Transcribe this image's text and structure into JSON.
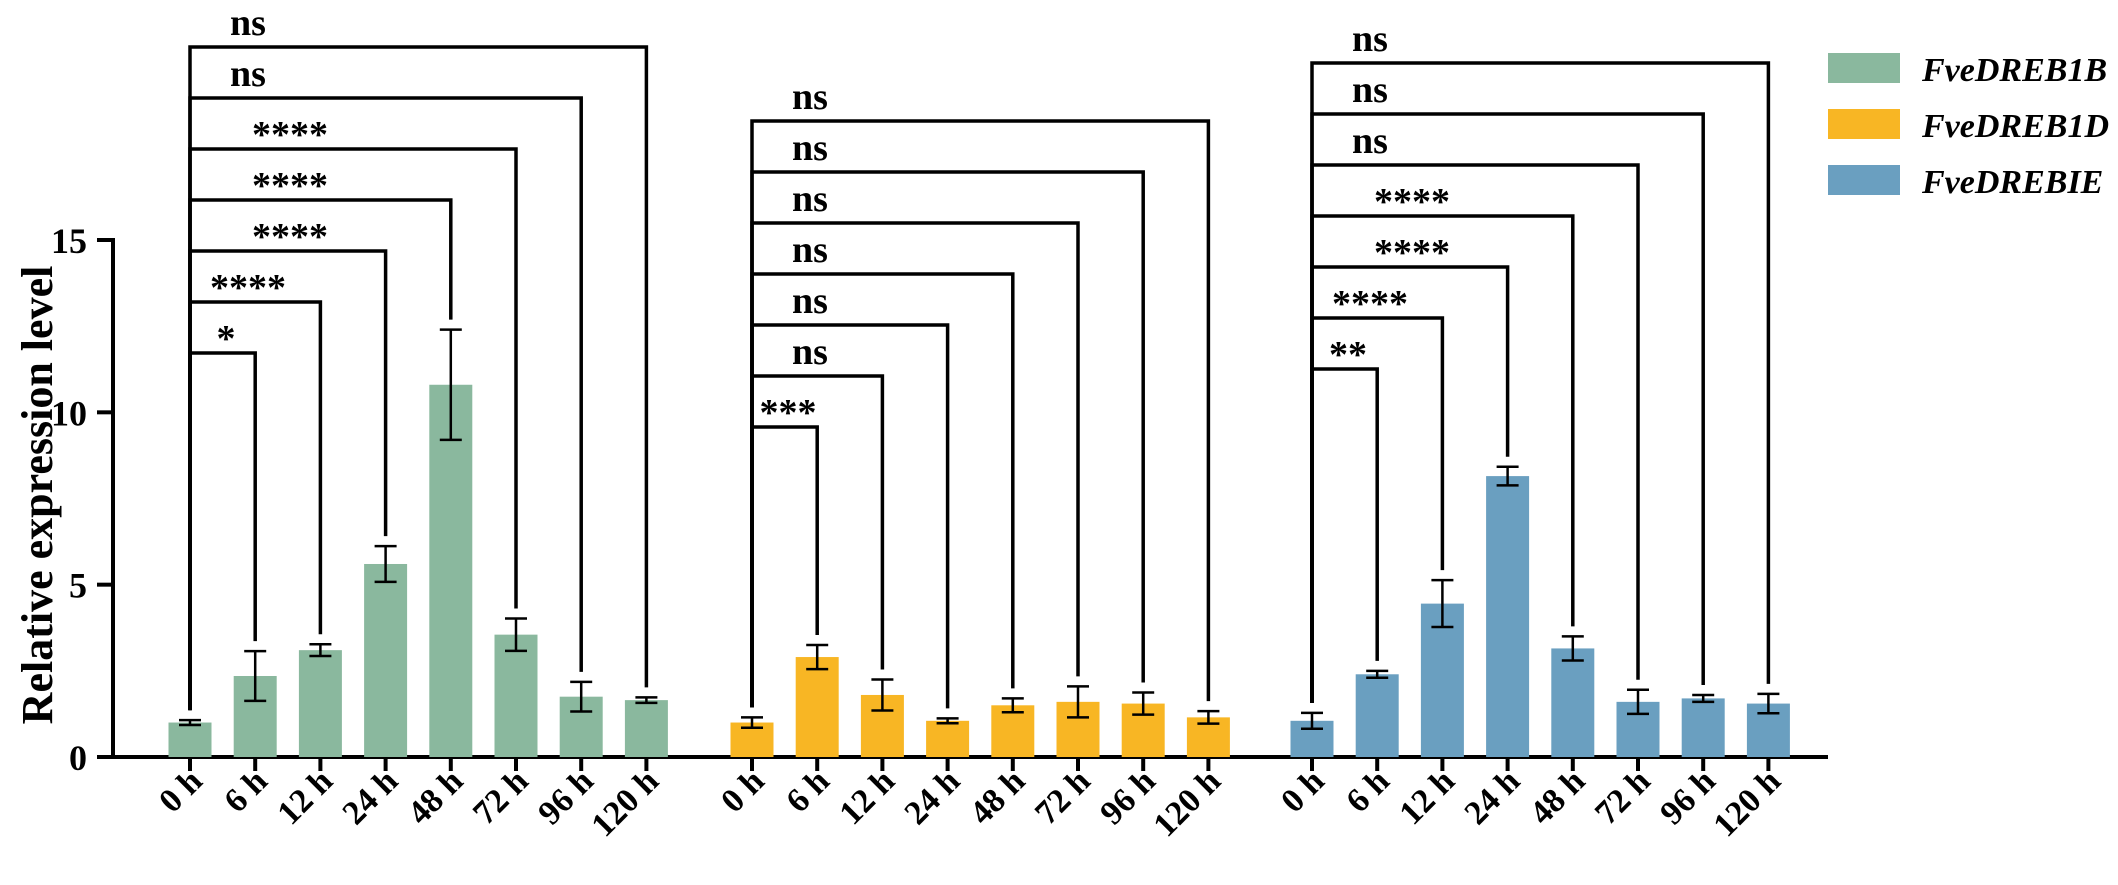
{
  "chart_data": {
    "type": "bar",
    "ylabel": "Relative expression level",
    "ylim": [
      0,
      15
    ],
    "yticks": [
      0,
      5,
      10,
      15
    ],
    "categories": [
      "0 h",
      "6 h",
      "12 h",
      "24 h",
      "48 h",
      "72 h",
      "96 h",
      "120 h"
    ],
    "legend_position": "top-right",
    "series": [
      {
        "name": "FveDREB1B",
        "color": "#8ab89e",
        "values": [
          1.0,
          2.35,
          3.1,
          5.6,
          10.8,
          3.55,
          1.75,
          1.65
        ],
        "errors": [
          0.07,
          0.72,
          0.17,
          0.52,
          1.6,
          0.47,
          0.43,
          0.08
        ],
        "significance": [
          "*",
          "****",
          "****",
          "****",
          "****",
          "ns",
          "ns"
        ]
      },
      {
        "name": "FveDREB1D",
        "color": "#f8b624",
        "values": [
          1.0,
          2.9,
          1.8,
          1.05,
          1.5,
          1.6,
          1.55,
          1.15
        ],
        "errors": [
          0.15,
          0.35,
          0.45,
          0.07,
          0.2,
          0.45,
          0.32,
          0.18
        ],
        "significance": [
          "***",
          "ns",
          "ns",
          "ns",
          "ns",
          "ns",
          "ns"
        ]
      },
      {
        "name": "FveDREBIE",
        "color": "#6a9fc0",
        "values": [
          1.05,
          2.4,
          4.45,
          8.15,
          3.15,
          1.6,
          1.7,
          1.55
        ],
        "errors": [
          0.23,
          0.1,
          0.68,
          0.27,
          0.35,
          0.35,
          0.1,
          0.28
        ],
        "significance": [
          "**",
          "****",
          "****",
          "****",
          "ns",
          "ns",
          "ns"
        ]
      }
    ]
  }
}
